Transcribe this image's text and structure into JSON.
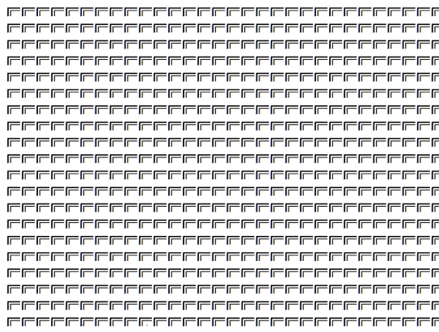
{
  "pattern": {
    "tile_icon": "double-corner-bracket-icon",
    "columns": 30,
    "rows": 20,
    "colors": {
      "background": "#ffffff",
      "outer_stroke": "#111111",
      "inner_stroke": "#222222",
      "fringe_blue": "#5a78c8",
      "fringe_gold": "#b89a4a"
    }
  },
  "bottom_marks": {
    "glyphs": [
      "ˊ",
      "ˊ"
    ]
  }
}
